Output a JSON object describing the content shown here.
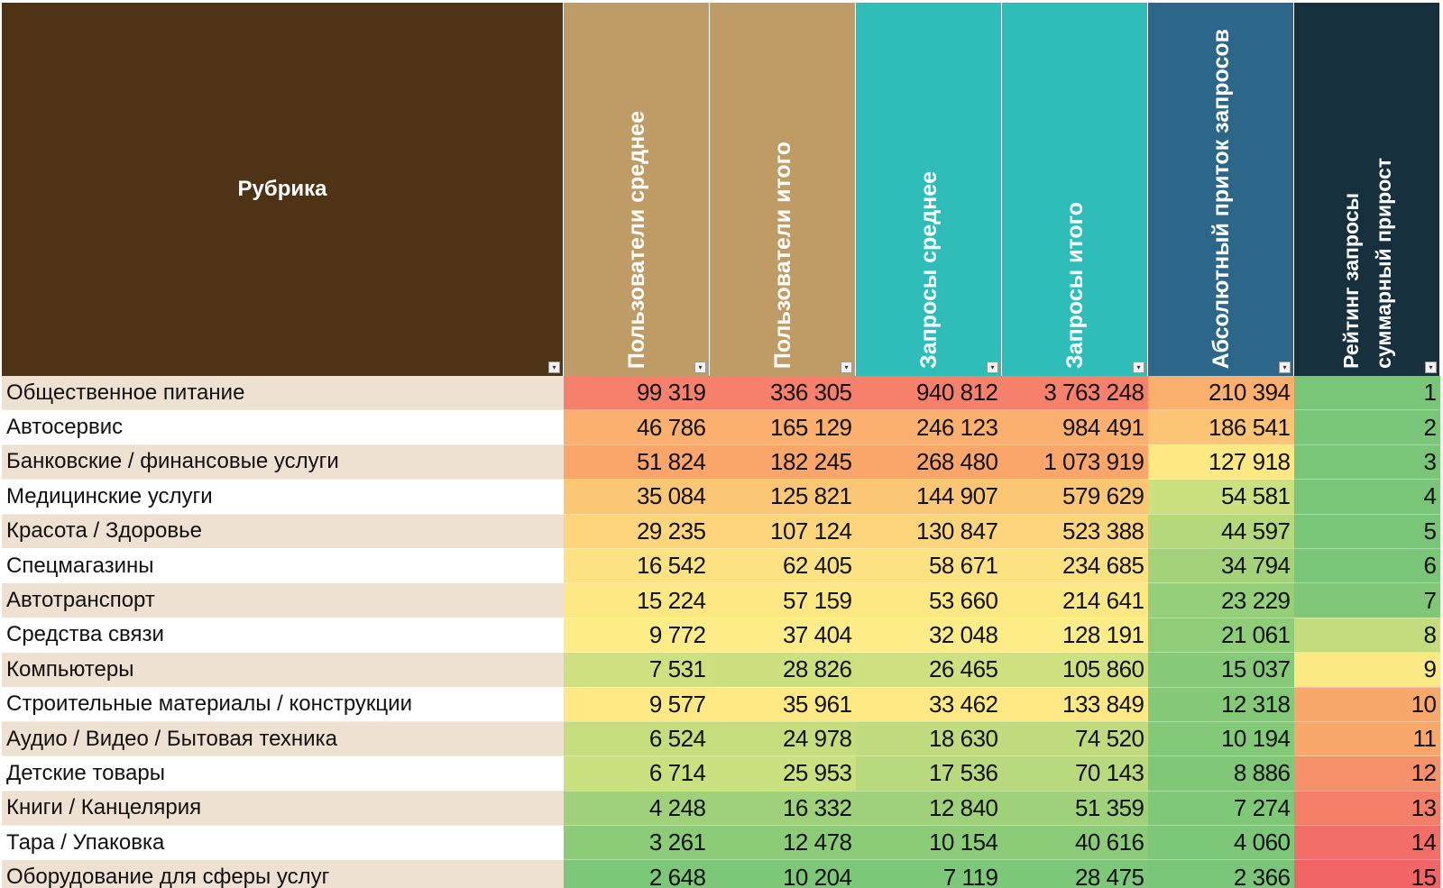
{
  "headers": [
    {
      "label": "Рубрика",
      "color": "#4e3316"
    },
    {
      "label": "Пользователи среднее",
      "color": "#bf9b66"
    },
    {
      "label": "Пользователи итого",
      "color": "#bf9b66"
    },
    {
      "label": "Запросы среднее",
      "color": "#2ebdb8"
    },
    {
      "label": "Запросы итого",
      "color": "#2ebdb8"
    },
    {
      "label": "Абсолютный приток запросов",
      "color": "#2c6688"
    },
    {
      "label_line1": "Рейтинг запросы",
      "label_line2": "суммарный прирост",
      "color": "#17303e"
    }
  ],
  "rows": [
    {
      "rubric": "Общественное питание",
      "users_avg": "99 319",
      "users_total": "336 305",
      "req_avg": "940 812",
      "req_total": "3 763 248",
      "abs_inflow": "210 394",
      "rank": "1"
    },
    {
      "rubric": "Автосервис",
      "users_avg": "46 786",
      "users_total": "165 129",
      "req_avg": "246 123",
      "req_total": "984 491",
      "abs_inflow": "186 541",
      "rank": "2"
    },
    {
      "rubric": "Банковские / финансовые услуги",
      "users_avg": "51 824",
      "users_total": "182 245",
      "req_avg": "268 480",
      "req_total": "1 073 919",
      "abs_inflow": "127 918",
      "rank": "3"
    },
    {
      "rubric": "Медицинские услуги",
      "users_avg": "35 084",
      "users_total": "125 821",
      "req_avg": "144 907",
      "req_total": "579 629",
      "abs_inflow": "54 581",
      "rank": "4"
    },
    {
      "rubric": "Красота / Здоровье",
      "users_avg": "29 235",
      "users_total": "107 124",
      "req_avg": "130 847",
      "req_total": "523 388",
      "abs_inflow": "44 597",
      "rank": "5"
    },
    {
      "rubric": "Спецмагазины",
      "users_avg": "16 542",
      "users_total": "62 405",
      "req_avg": "58 671",
      "req_total": "234 685",
      "abs_inflow": "34 794",
      "rank": "6"
    },
    {
      "rubric": "Автотранспорт",
      "users_avg": "15 224",
      "users_total": "57 159",
      "req_avg": "53 660",
      "req_total": "214 641",
      "abs_inflow": "23 229",
      "rank": "7"
    },
    {
      "rubric": "Средства связи",
      "users_avg": "9 772",
      "users_total": "37 404",
      "req_avg": "32 048",
      "req_total": "128 191",
      "abs_inflow": "21 061",
      "rank": "8"
    },
    {
      "rubric": "Компьютеры",
      "users_avg": "7 531",
      "users_total": "28 826",
      "req_avg": "26 465",
      "req_total": "105 860",
      "abs_inflow": "15 037",
      "rank": "9"
    },
    {
      "rubric": "Строительные материалы / конструкции",
      "users_avg": "9 577",
      "users_total": "35 961",
      "req_avg": "33 462",
      "req_total": "133 849",
      "abs_inflow": "12 318",
      "rank": "10"
    },
    {
      "rubric": "Аудио / Видео / Бытовая техника",
      "users_avg": "6 524",
      "users_total": "24 978",
      "req_avg": "18 630",
      "req_total": "74 520",
      "abs_inflow": "10 194",
      "rank": "11"
    },
    {
      "rubric": "Детские товары",
      "users_avg": "6 714",
      "users_total": "25 953",
      "req_avg": "17 536",
      "req_total": "70 143",
      "abs_inflow": "8 886",
      "rank": "12"
    },
    {
      "rubric": "Книги / Канцелярия",
      "users_avg": "4 248",
      "users_total": "16 332",
      "req_avg": "12 840",
      "req_total": "51 359",
      "abs_inflow": "7 274",
      "rank": "13"
    },
    {
      "rubric": "Тара / Упаковка",
      "users_avg": "3 261",
      "users_total": "12 478",
      "req_avg": "10 154",
      "req_total": "40 616",
      "abs_inflow": "4 060",
      "rank": "14"
    },
    {
      "rubric": "Оборудование для сферы услуг",
      "users_avg": "2 648",
      "users_total": "10 204",
      "req_avg": "7 119",
      "req_total": "28 475",
      "abs_inflow": "2 366",
      "rank": "15"
    }
  ],
  "heatmap_colors": {
    "users_avg": [
      "#f5806b",
      "#fbb06d",
      "#faa66b",
      "#fcc774",
      "#fdd57c",
      "#fde283",
      "#fee884",
      "#fdec88",
      "#cee07f",
      "#fee984",
      "#c6dd7e",
      "#cbe07f",
      "#9ed17a",
      "#8ccc79",
      "#7dc778"
    ],
    "users_total": [
      "#f5806b",
      "#fbb06d",
      "#faa66b",
      "#fcc774",
      "#fdd57c",
      "#fde283",
      "#fee884",
      "#fdec88",
      "#cde07f",
      "#fee984",
      "#c6dd7e",
      "#cbe07f",
      "#9ed17a",
      "#8ccc79",
      "#7dc778"
    ],
    "req_avg": [
      "#f5806b",
      "#fbb06d",
      "#faa66b",
      "#fcc774",
      "#fdd57c",
      "#fde283",
      "#fee884",
      "#fdec88",
      "#cee07f",
      "#fee984",
      "#c0db7e",
      "#b8d97d",
      "#9ed17a",
      "#8ccc79",
      "#7dc778"
    ],
    "req_total": [
      "#f5806b",
      "#fbb06d",
      "#faa66b",
      "#fcc774",
      "#fdd57c",
      "#fde283",
      "#fee884",
      "#fdec88",
      "#cee07f",
      "#fee984",
      "#c0db7e",
      "#b8d97d",
      "#9ed17a",
      "#8ccc79",
      "#7dc778"
    ],
    "abs_inflow": [
      "#fbb06d",
      "#fcc573",
      "#fee884",
      "#cbe07f",
      "#b5d87d",
      "#a4d27b",
      "#96cf7a",
      "#8fcd79",
      "#86ca79",
      "#84c978",
      "#82c978",
      "#80c878",
      "#7fc878",
      "#7cc778",
      "#7ac678"
    ],
    "rank": [
      "#7ac678",
      "#7ac678",
      "#7ac678",
      "#7ac678",
      "#7ac678",
      "#7ac678",
      "#80c878",
      "#c4dc7d",
      "#fbe984",
      "#f9a86c",
      "#f9a86c",
      "#f6906a",
      "#f47f69",
      "#f26e68",
      "#f16566"
    ]
  }
}
